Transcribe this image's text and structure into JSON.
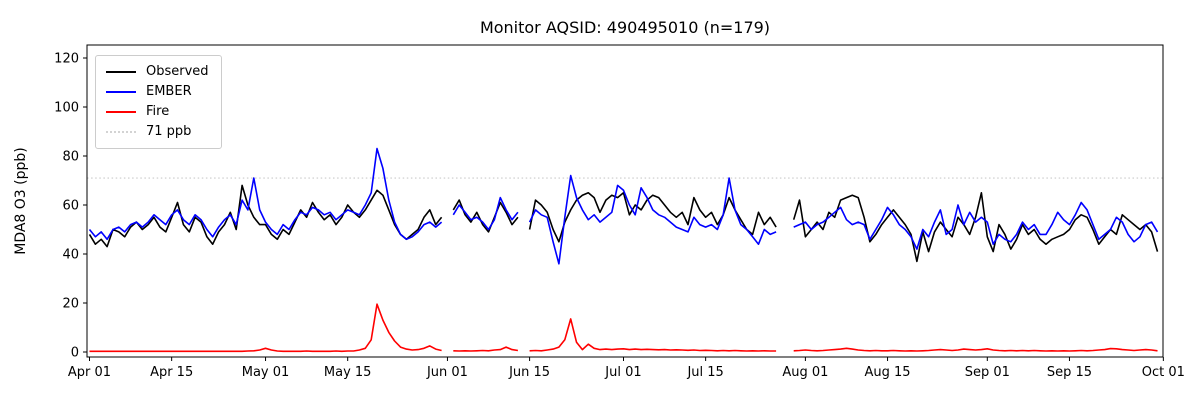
{
  "chart_data": {
    "type": "line",
    "title": "Monitor AQSID: 490495010 (n=179)",
    "xlabel": "",
    "ylabel": "MDA8 O3 (ppb)",
    "ylim": [
      -2,
      125
    ],
    "yticks": [
      0,
      20,
      40,
      60,
      80,
      100,
      120
    ],
    "x_frequency": "daily",
    "x_start": "Apr 01",
    "x_end": "Sep 30",
    "grid": false,
    "xticks": [
      {
        "day": 0,
        "label": "Apr 01"
      },
      {
        "day": 14,
        "label": "Apr 15"
      },
      {
        "day": 30,
        "label": "May 01"
      },
      {
        "day": 44,
        "label": "May 15"
      },
      {
        "day": 61,
        "label": "Jun 01"
      },
      {
        "day": 75,
        "label": "Jun 15"
      },
      {
        "day": 91,
        "label": "Jul 01"
      },
      {
        "day": 105,
        "label": "Jul 15"
      },
      {
        "day": 122,
        "label": "Aug 01"
      },
      {
        "day": 136,
        "label": "Aug 15"
      },
      {
        "day": 153,
        "label": "Sep 01"
      },
      {
        "day": 167,
        "label": "Sep 15"
      },
      {
        "day": 183,
        "label": "Oct 01"
      }
    ],
    "threshold": {
      "label": "71 ppb",
      "value": 71,
      "color": "#d3d3d3",
      "linestyle": "dotted"
    },
    "legend": {
      "position": "upper left"
    },
    "series": [
      {
        "name": "Observed",
        "color": "#000000",
        "linestyle": "solid",
        "values": [
          48,
          44,
          46,
          43,
          50,
          49,
          47,
          51,
          53,
          50,
          52,
          55,
          51,
          49,
          55,
          61,
          52,
          49,
          55,
          53,
          47,
          44,
          49,
          52,
          57,
          50,
          68,
          60,
          55,
          52,
          52,
          48,
          46,
          50,
          48,
          53,
          58,
          55,
          61,
          57,
          54,
          56,
          52,
          55,
          60,
          57,
          55,
          58,
          62,
          66,
          64,
          58,
          52,
          48,
          46,
          48,
          50,
          55,
          58,
          52,
          55,
          null,
          58,
          62,
          56,
          53,
          57,
          52,
          49,
          55,
          61,
          57,
          52,
          55,
          null,
          50,
          62,
          60,
          57,
          50,
          45,
          53,
          58,
          62,
          64,
          65,
          63,
          57,
          62,
          64,
          63,
          65,
          56,
          60,
          58,
          62,
          64,
          63,
          60,
          57,
          55,
          57,
          52,
          63,
          58,
          55,
          57,
          52,
          56,
          63,
          58,
          54,
          50,
          48,
          57,
          52,
          55,
          51,
          null,
          null,
          54,
          62,
          47,
          50,
          53,
          50,
          57,
          55,
          62,
          63,
          64,
          63,
          55,
          45,
          48,
          52,
          55,
          58,
          55,
          52,
          48,
          37,
          49,
          41,
          49,
          53,
          50,
          47,
          55,
          52,
          48,
          55,
          65,
          47,
          41,
          52,
          48,
          42,
          46,
          52,
          48,
          50,
          46,
          44,
          46,
          47,
          48,
          50,
          54,
          56,
          55,
          50,
          44,
          47,
          50,
          48,
          56,
          54,
          52,
          50,
          52,
          49,
          41
        ]
      },
      {
        "name": "EMBER",
        "color": "#0000ff",
        "linestyle": "solid",
        "values": [
          50,
          47,
          49,
          46,
          50,
          51,
          49,
          52,
          53,
          51,
          53,
          56,
          54,
          52,
          56,
          58,
          54,
          52,
          56,
          54,
          50,
          47,
          51,
          54,
          56,
          52,
          62,
          58,
          71,
          58,
          53,
          50,
          48,
          52,
          50,
          54,
          57,
          56,
          59,
          58,
          56,
          57,
          54,
          56,
          58,
          57,
          56,
          60,
          65,
          83,
          75,
          62,
          53,
          48,
          46,
          47,
          49,
          52,
          53,
          51,
          53,
          null,
          56,
          60,
          57,
          54,
          55,
          53,
          50,
          54,
          63,
          58,
          54,
          57,
          null,
          53,
          58,
          56,
          55,
          45,
          36,
          55,
          72,
          63,
          58,
          54,
          56,
          53,
          55,
          57,
          68,
          66,
          60,
          56,
          67,
          63,
          58,
          56,
          55,
          53,
          51,
          50,
          49,
          55,
          52,
          51,
          52,
          50,
          56,
          71,
          58,
          52,
          50,
          47,
          44,
          50,
          48,
          49,
          null,
          null,
          51,
          52,
          53,
          50,
          52,
          53,
          55,
          57,
          59,
          54,
          52,
          53,
          52,
          46,
          50,
          54,
          59,
          56,
          52,
          50,
          47,
          42,
          50,
          47,
          53,
          58,
          48,
          50,
          60,
          52,
          57,
          53,
          55,
          53,
          44,
          48,
          46,
          45,
          48,
          53,
          50,
          52,
          48,
          48,
          52,
          57,
          54,
          52,
          56,
          61,
          58,
          52,
          46,
          48,
          50,
          55,
          53,
          48,
          45,
          47,
          52,
          53,
          49
        ]
      },
      {
        "name": "Fire",
        "color": "#ff0000",
        "linestyle": "solid",
        "values": [
          0.3,
          0.3,
          0.3,
          0.3,
          0.3,
          0.3,
          0.3,
          0.3,
          0.3,
          0.3,
          0.3,
          0.3,
          0.3,
          0.3,
          0.3,
          0.3,
          0.3,
          0.3,
          0.3,
          0.3,
          0.3,
          0.3,
          0.3,
          0.3,
          0.3,
          0.3,
          0.3,
          0.4,
          0.5,
          0.8,
          1.5,
          0.8,
          0.4,
          0.3,
          0.3,
          0.3,
          0.3,
          0.4,
          0.3,
          0.3,
          0.3,
          0.3,
          0.4,
          0.3,
          0.4,
          0.4,
          0.8,
          1.5,
          5,
          19.5,
          13,
          8,
          4.5,
          2,
          1.2,
          0.8,
          1,
          1.5,
          2.5,
          1.2,
          0.6,
          null,
          0.5,
          0.4,
          0.5,
          0.4,
          0.5,
          0.6,
          0.5,
          0.8,
          1,
          2,
          1,
          0.6,
          null,
          0.5,
          0.6,
          0.5,
          0.8,
          1.2,
          2,
          5,
          13.5,
          4,
          1,
          3.2,
          1.5,
          1,
          1.2,
          1,
          1.2,
          1.3,
          1,
          1.2,
          1,
          1.1,
          1,
          0.9,
          1,
          0.8,
          0.9,
          0.8,
          0.7,
          0.8,
          0.6,
          0.7,
          0.6,
          0.5,
          0.6,
          0.5,
          0.6,
          0.5,
          0.4,
          0.5,
          0.4,
          0.5,
          0.4,
          0.4,
          null,
          null,
          0.5,
          0.6,
          0.8,
          0.6,
          0.5,
          0.6,
          0.8,
          1,
          1.2,
          1.5,
          1.2,
          0.8,
          0.6,
          0.5,
          0.6,
          0.5,
          0.5,
          0.6,
          0.5,
          0.4,
          0.5,
          0.4,
          0.5,
          0.6,
          0.8,
          1,
          0.8,
          0.6,
          0.8,
          1.2,
          1,
          0.8,
          1,
          1.3,
          0.8,
          0.6,
          0.5,
          0.6,
          0.5,
          0.6,
          0.5,
          0.6,
          0.5,
          0.4,
          0.5,
          0.4,
          0.5,
          0.4,
          0.5,
          0.6,
          0.5,
          0.6,
          0.8,
          1,
          1.4,
          1.3,
          1,
          0.8,
          0.6,
          0.8,
          1,
          0.8,
          0.5
        ]
      }
    ]
  }
}
